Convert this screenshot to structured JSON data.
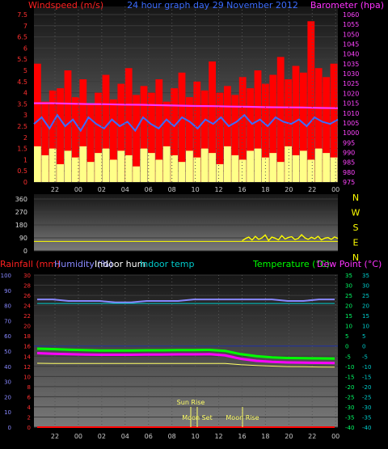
{
  "chart_data": [
    {
      "type": "area",
      "header": {
        "left": "Windspeed (m/s)",
        "center": "24 hour graph day   29 November 2012",
        "right": "Barometer (hpa)"
      },
      "x_ticks": [
        "22",
        "00",
        "02",
        "04",
        "06",
        "08",
        "10",
        "12",
        "16",
        "18",
        "20",
        "22",
        "00"
      ],
      "y_left_ticks": [
        "7.5",
        "7",
        "6.5",
        "6",
        "5.5",
        "5",
        "4.5",
        "4",
        "3.5",
        "3",
        "2.5",
        "2",
        "1.5",
        "1",
        "0.5",
        "0"
      ],
      "y_left_lim": [
        0,
        7.5
      ],
      "y_right_ticks": [
        "1060",
        "1055",
        "1050",
        "1045",
        "1040",
        "1035",
        "1030",
        "1025",
        "1020",
        "1015",
        "1010",
        "1005",
        "1000",
        "995",
        "990",
        "985",
        "980",
        "975"
      ],
      "y_right_lim": [
        975,
        1060
      ],
      "series": [
        {
          "role": "wind_gust",
          "color": "#ff0000",
          "values": [
            5.3,
            3.6,
            4.1,
            4.2,
            5.0,
            3.8,
            4.6,
            3.5,
            4.0,
            4.8,
            3.7,
            4.4,
            5.1,
            3.9,
            4.3,
            4.0,
            4.6,
            3.6,
            4.2,
            4.9,
            3.8,
            4.5,
            4.1,
            5.4,
            4.0,
            4.3,
            3.9,
            4.7,
            4.2,
            5.0,
            4.4,
            4.8,
            5.6,
            4.6,
            5.2,
            4.9,
            7.2,
            5.1,
            4.7,
            5.3
          ]
        },
        {
          "role": "wind_avg",
          "color": "#3b6cff",
          "values": [
            2.6,
            2.9,
            2.4,
            3.0,
            2.5,
            2.8,
            2.3,
            2.9,
            2.6,
            2.4,
            2.8,
            2.5,
            2.7,
            2.3,
            2.9,
            2.6,
            2.4,
            2.8,
            2.5,
            2.9,
            2.7,
            2.4,
            2.8,
            2.6,
            2.9,
            2.5,
            2.7,
            3.0,
            2.6,
            2.8,
            2.5,
            2.9,
            2.7,
            2.6,
            2.8,
            2.5,
            2.9,
            2.7,
            2.6,
            2.8
          ]
        },
        {
          "role": "wind_low",
          "color": "#ffff88",
          "values": [
            1.6,
            1.2,
            1.5,
            0.8,
            1.4,
            1.1,
            1.6,
            0.9,
            1.3,
            1.5,
            1.0,
            1.4,
            1.2,
            0.7,
            1.5,
            1.3,
            1.0,
            1.6,
            1.2,
            0.9,
            1.4,
            1.1,
            1.5,
            1.3,
            0.8,
            1.6,
            1.2,
            1.0,
            1.4,
            1.5,
            1.1,
            1.3,
            0.9,
            1.6,
            1.2,
            1.4,
            1.0,
            1.5,
            1.3,
            1.1
          ]
        },
        {
          "role": "barometer",
          "color": "#ff33ff",
          "values": [
            1015,
            1015,
            1014.8,
            1014.6,
            1014.5,
            1014.3,
            1014.2,
            1014.0,
            1013.8,
            1013.6,
            1013.5,
            1013.3,
            1013.2,
            1013.0,
            1012.9,
            1012.8,
            1012.6,
            1012.5
          ]
        }
      ]
    },
    {
      "type": "line",
      "y_ticks": [
        "360",
        "270",
        "180",
        "90",
        "0"
      ],
      "ylim": [
        0,
        360
      ],
      "compass": [
        "N",
        "W",
        "S",
        "E",
        "N"
      ],
      "series": [
        {
          "role": "wind_direction_avg",
          "color": "#ffff00",
          "values": [
            65,
            65,
            65,
            65,
            65,
            65,
            65,
            65,
            65,
            65,
            65,
            65,
            65,
            65,
            65,
            65,
            65,
            65,
            65,
            65,
            65,
            65,
            65,
            65,
            65,
            65,
            65,
            65,
            65,
            65,
            65,
            65,
            65,
            65,
            65,
            65,
            65,
            65,
            65,
            65
          ]
        },
        {
          "role": "wind_direction_scatter",
          "color": "#ffff00",
          "from_fraction": 0.685,
          "values": [
            70,
            85,
            95,
            75,
            100,
            80,
            90,
            110,
            72,
            95,
            88,
            76,
            105,
            82,
            92,
            98,
            78,
            86,
            112,
            90,
            80,
            94,
            84,
            100,
            76,
            88,
            92,
            80,
            96,
            86
          ]
        }
      ]
    },
    {
      "type": "line",
      "header": {
        "rainfall": "Rainfall (mm)",
        "humidity": "Humidity (%)",
        "indoor_hum": "Indoor hum",
        "indoor_temp": "Indoor temp",
        "temperature": "Temperature (°C)",
        "dew_point": "Dew Point (°C)"
      },
      "x_ticks": [
        "22",
        "00",
        "02",
        "04",
        "06",
        "08",
        "10",
        "12",
        "16",
        "18",
        "20",
        "22",
        "00"
      ],
      "rain_ticks": [
        "30",
        "28",
        "26",
        "24",
        "22",
        "20",
        "18",
        "16",
        "14",
        "12",
        "10",
        "8",
        "6",
        "4",
        "2",
        "0"
      ],
      "rain_lim": [
        0,
        30
      ],
      "humidity_ticks": [
        "100",
        "90",
        "80",
        "70",
        "60",
        "50",
        "40",
        "30",
        "20",
        "10",
        "0"
      ],
      "humidity_lim": [
        0,
        100
      ],
      "temp_ticks": [
        "35",
        "30",
        "25",
        "20",
        "15",
        "10",
        "5",
        "0",
        "-5",
        "-10",
        "-15",
        "-20",
        "-25",
        "-30",
        "-35",
        "-40"
      ],
      "temp_lim": [
        -40,
        35
      ],
      "annotations": {
        "sunrise": "Sun Rise",
        "moonset": "Moon Set",
        "moonrise": "Moon Rise"
      },
      "series": [
        {
          "role": "humidity",
          "color": "#8888ff",
          "values": [
            84,
            84,
            83,
            83,
            83,
            82,
            82,
            83,
            83,
            83,
            84,
            84,
            84,
            84,
            84,
            84,
            83,
            83,
            84,
            84
          ]
        },
        {
          "role": "indoor_hum",
          "color": "#aaaaaa",
          "values": [
            84,
            84,
            84,
            84,
            84,
            84,
            84,
            84,
            84,
            84,
            84,
            84,
            84,
            84,
            84,
            84,
            84,
            84,
            84,
            84
          ]
        },
        {
          "role": "indoor_temp",
          "color": "#00cccc",
          "values": [
            21,
            21,
            21,
            21,
            21,
            21,
            21,
            21,
            21,
            21,
            21,
            21,
            21,
            21,
            21,
            21,
            21,
            21,
            21,
            21
          ]
        },
        {
          "role": "temperature",
          "color": "#00ff00",
          "values": [
            -1.3,
            -1.5,
            -1.8,
            -2.0,
            -2.2,
            -2.2,
            -2.2,
            -2.1,
            -2.1,
            -2.0,
            -2.0,
            -1.9,
            -2.4,
            -4.0,
            -5.0,
            -5.6,
            -5.9,
            -6.0,
            -6.1,
            -6.2
          ]
        },
        {
          "role": "dew_point",
          "color": "#ff00ff",
          "values": [
            -3.5,
            -3.8,
            -4.0,
            -4.2,
            -4.3,
            -4.3,
            -4.3,
            -4.2,
            -4.2,
            -4.1,
            -4.1,
            -4.0,
            -4.6,
            -6.3,
            -7.3,
            -7.8,
            -8.1,
            -8.2,
            -8.3,
            -8.4
          ]
        },
        {
          "role": "indoor_temp_yellow",
          "color": "#ffff66",
          "values": [
            -8.5,
            -8.6,
            -8.6,
            -8.6,
            -8.6,
            -8.6,
            -8.6,
            -8.6,
            -8.6,
            -8.6,
            -8.6,
            -8.6,
            -8.6,
            -9.2,
            -9.6,
            -9.9,
            -10.1,
            -10.2,
            -10.3,
            -10.4
          ]
        },
        {
          "role": "rainfall",
          "color": "#ff0000",
          "values": [
            0,
            0,
            0,
            0,
            0,
            0,
            0,
            0,
            0,
            0,
            0,
            0,
            0,
            0,
            0,
            0,
            0,
            0,
            0,
            0
          ]
        }
      ]
    }
  ]
}
